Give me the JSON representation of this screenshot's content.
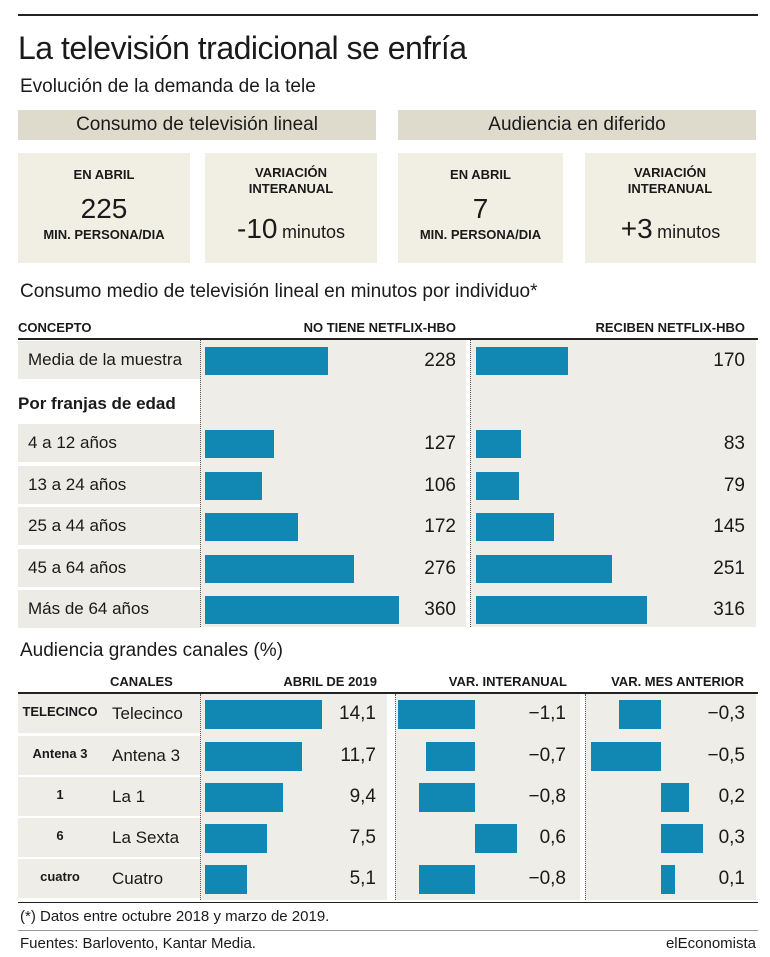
{
  "title": "La televisión tradicional se enfría",
  "subtitle": "Evolución de la demanda de la tele",
  "sections": {
    "linear": "Consumo de televisión lineal",
    "deferred": "Audiencia en diferido"
  },
  "cards": [
    {
      "label": "EN ABRIL",
      "value": "225",
      "unit": "MIN. PERSONA/DIA"
    },
    {
      "label": "VARIACIÓN INTERANUAL",
      "value": "-10",
      "unit": "minutos"
    },
    {
      "label": "EN ABRIL",
      "value": "7",
      "unit": "MIN. PERSONA/DIA"
    },
    {
      "label": "VARIACIÓN INTERANUAL",
      "value": "+3",
      "unit": "minutos"
    }
  ],
  "chart_data": [
    {
      "type": "bar",
      "title": "Consumo medio de televisión lineal en minutos por individuo*",
      "column_headers": {
        "concept": "CONCEPTO",
        "a": "NO TIENE NETFLIX-HBO",
        "b": "RECIBEN NETFLIX-HBO"
      },
      "group_label": "Por franjas de edad",
      "categories": [
        "Media de la muestra",
        "4 a 12 años",
        "13 a 24 años",
        "25 a 44 años",
        "45 a 64 años",
        "Más de 64 años"
      ],
      "series": [
        {
          "name": "NO TIENE NETFLIX-HBO",
          "values": [
            228,
            127,
            106,
            172,
            276,
            360
          ],
          "labels": [
            "228",
            "127",
            "106",
            "172",
            "276",
            "360"
          ]
        },
        {
          "name": "RECIBEN NETFLIX-HBO",
          "values": [
            170,
            83,
            79,
            145,
            251,
            316
          ],
          "labels": [
            "170",
            "83",
            "79",
            "145",
            "251",
            "316"
          ]
        }
      ],
      "xlim": [
        0,
        400
      ],
      "bar_color": "#1187b3"
    },
    {
      "type": "bar",
      "title": "Audiencia grandes canales (%)",
      "column_headers": {
        "channels": "CANALES",
        "a": "ABRIL DE 2019",
        "b": "VAR. INTERANUAL",
        "c": "VAR. MES ANTERIOR"
      },
      "categories": [
        "Telecinco",
        "Antena 3",
        "La 1",
        "La Sexta",
        "Cuatro"
      ],
      "logos": [
        "TELECINCO",
        "Antena 3",
        "1",
        "6",
        "cuatro"
      ],
      "series": [
        {
          "name": "ABRIL DE 2019",
          "values": [
            14.1,
            11.7,
            9.4,
            7.5,
            5.1
          ],
          "labels": [
            "14,1",
            "11,7",
            "9,4",
            "7,5",
            "5,1"
          ]
        },
        {
          "name": "VAR. INTERANUAL",
          "values": [
            -1.1,
            -0.7,
            -0.8,
            0.6,
            -0.8
          ],
          "labels": [
            "−1,1",
            "−0,7",
            "−0,8",
            "0,6",
            "−0,8"
          ]
        },
        {
          "name": "VAR. MES ANTERIOR",
          "values": [
            -0.3,
            -0.5,
            0.2,
            0.3,
            0.1
          ],
          "labels": [
            "−0,3",
            "−0,5",
            "0,2",
            "0,3",
            "0,1"
          ]
        }
      ],
      "bar_color": "#1187b3"
    }
  ],
  "footnote": "(*) Datos entre octubre 2018 y marzo de 2019.",
  "sources": "Fuentes: Barlovento, Kantar Media.",
  "brand": "elEconomista"
}
